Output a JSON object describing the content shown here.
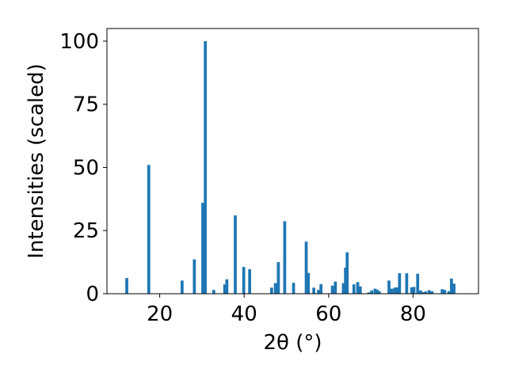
{
  "chart_data": {
    "type": "bar",
    "title": "",
    "xlabel": "2θ (°)",
    "ylabel": "Intensities (scaled)",
    "xlim": [
      7.5,
      95.5
    ],
    "ylim": [
      0,
      105
    ],
    "xticks": [
      20,
      40,
      60,
      80
    ],
    "yticks": [
      0,
      25,
      50,
      75,
      100
    ],
    "grid": false,
    "legend": "none",
    "bar_color": "#1f77b4",
    "bar_width": 0.7,
    "x": [
      12.2,
      17.4,
      25.3,
      28.2,
      30.2,
      30.8,
      32.8,
      35.4,
      35.9,
      37.9,
      39.9,
      41.3,
      46.5,
      47.4,
      48.1,
      49.6,
      51.7,
      54.7,
      55.2,
      56.5,
      57.6,
      58.2,
      60.9,
      61.6,
      63.5,
      64.0,
      64.4,
      66.0,
      66.9,
      67.5,
      69.5,
      70.2,
      71.0,
      71.5,
      72.0,
      74.3,
      75.0,
      75.7,
      76.3,
      76.8,
      78.5,
      79.7,
      80.2,
      81.1,
      81.8,
      82.5,
      83.0,
      83.8,
      84.5,
      86.9,
      87.5,
      88.5,
      89.1,
      89.7
    ],
    "values": [
      6.2,
      51.0,
      5.2,
      13.6,
      36.0,
      100.0,
      1.5,
      3.7,
      5.7,
      31.0,
      10.6,
      9.7,
      2.4,
      4.2,
      12.5,
      28.7,
      4.3,
      20.6,
      8.2,
      2.4,
      1.5,
      3.8,
      3.2,
      4.8,
      4.2,
      10.3,
      16.4,
      3.7,
      4.6,
      2.9,
      0.5,
      1.3,
      2.0,
      1.6,
      1.0,
      5.2,
      2.0,
      2.4,
      2.5,
      8.1,
      8.1,
      2.5,
      2.7,
      7.9,
      1.3,
      0.6,
      0.9,
      1.4,
      1.0,
      1.8,
      1.5,
      1.0,
      6.0,
      4.0
    ]
  }
}
